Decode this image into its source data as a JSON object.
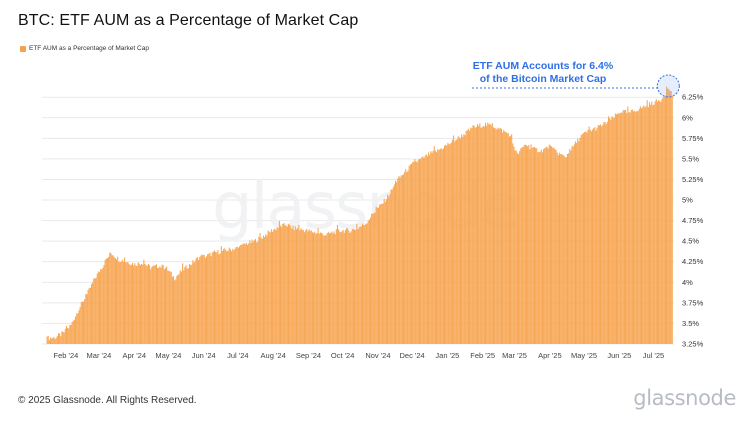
{
  "header": {
    "title": "BTC: ETF AUM as a Percentage of Market Cap"
  },
  "chart_data": {
    "type": "bar",
    "title": "BTC: ETF AUM as a Percentage of Market Cap",
    "xlabel": "",
    "ylabel": "",
    "ylim": [
      3.25,
      6.35
    ],
    "grid": true,
    "legend_position": "top-left",
    "legend": [
      "ETF AUM as a Percentage of Market Cap"
    ],
    "yticks": [
      "3.25%",
      "3.5%",
      "3.75%",
      "4%",
      "4.25%",
      "4.5%",
      "4.75%",
      "5%",
      "5.25%",
      "5.5%",
      "5.75%",
      "6%",
      "6.25%"
    ],
    "ytick_values": [
      3.25,
      3.5,
      3.75,
      4.0,
      4.25,
      4.5,
      4.75,
      5.0,
      5.25,
      5.5,
      5.75,
      6.0,
      6.25
    ],
    "xticks": [
      "Feb '24",
      "Mar '24",
      "Apr '24",
      "May '24",
      "Jun '24",
      "Jul '24",
      "Aug '24",
      "Sep '24",
      "Oct '24",
      "Nov '24",
      "Dec '24",
      "Jan '25",
      "Feb '25",
      "Mar '25",
      "Apr '25",
      "May '25",
      "Jun '25",
      "Jul '25"
    ],
    "series": [
      {
        "name": "ETF AUM as a Percentage of Market Cap",
        "color": "#f7a24a",
        "points": [
          [
            "2024-01-15",
            3.32
          ],
          [
            "2024-01-22",
            3.33
          ],
          [
            "2024-01-29",
            3.38
          ],
          [
            "2024-02-05",
            3.48
          ],
          [
            "2024-02-12",
            3.68
          ],
          [
            "2024-02-19",
            3.85
          ],
          [
            "2024-02-26",
            4.05
          ],
          [
            "2024-03-04",
            4.2
          ],
          [
            "2024-03-11",
            4.36
          ],
          [
            "2024-03-18",
            4.28
          ],
          [
            "2024-03-25",
            4.25
          ],
          [
            "2024-04-01",
            4.22
          ],
          [
            "2024-04-08",
            4.24
          ],
          [
            "2024-04-15",
            4.18
          ],
          [
            "2024-04-22",
            4.2
          ],
          [
            "2024-04-29",
            4.17
          ],
          [
            "2024-05-06",
            4.05
          ],
          [
            "2024-05-13",
            4.15
          ],
          [
            "2024-05-20",
            4.22
          ],
          [
            "2024-05-27",
            4.3
          ],
          [
            "2024-06-03",
            4.32
          ],
          [
            "2024-06-10",
            4.36
          ],
          [
            "2024-06-17",
            4.38
          ],
          [
            "2024-06-24",
            4.4
          ],
          [
            "2024-07-01",
            4.42
          ],
          [
            "2024-07-08",
            4.47
          ],
          [
            "2024-07-15",
            4.5
          ],
          [
            "2024-07-22",
            4.55
          ],
          [
            "2024-07-29",
            4.62
          ],
          [
            "2024-08-05",
            4.67
          ],
          [
            "2024-08-12",
            4.7
          ],
          [
            "2024-08-19",
            4.66
          ],
          [
            "2024-08-26",
            4.64
          ],
          [
            "2024-09-02",
            4.62
          ],
          [
            "2024-09-09",
            4.6
          ],
          [
            "2024-09-16",
            4.58
          ],
          [
            "2024-09-23",
            4.61
          ],
          [
            "2024-09-30",
            4.63
          ],
          [
            "2024-10-07",
            4.63
          ],
          [
            "2024-10-14",
            4.66
          ],
          [
            "2024-10-21",
            4.72
          ],
          [
            "2024-10-28",
            4.85
          ],
          [
            "2024-11-04",
            4.95
          ],
          [
            "2024-11-11",
            5.08
          ],
          [
            "2024-11-18",
            5.25
          ],
          [
            "2024-11-25",
            5.35
          ],
          [
            "2024-12-02",
            5.45
          ],
          [
            "2024-12-09",
            5.5
          ],
          [
            "2024-12-16",
            5.56
          ],
          [
            "2024-12-23",
            5.6
          ],
          [
            "2024-12-30",
            5.66
          ],
          [
            "2025-01-06",
            5.72
          ],
          [
            "2025-01-13",
            5.78
          ],
          [
            "2025-01-20",
            5.85
          ],
          [
            "2025-01-27",
            5.9
          ],
          [
            "2025-02-03",
            5.92
          ],
          [
            "2025-02-10",
            5.9
          ],
          [
            "2025-02-17",
            5.85
          ],
          [
            "2025-02-24",
            5.8
          ],
          [
            "2025-03-03",
            5.55
          ],
          [
            "2025-03-10",
            5.68
          ],
          [
            "2025-03-17",
            5.62
          ],
          [
            "2025-03-24",
            5.6
          ],
          [
            "2025-03-31",
            5.65
          ],
          [
            "2025-04-07",
            5.58
          ],
          [
            "2025-04-14",
            5.52
          ],
          [
            "2025-04-21",
            5.65
          ],
          [
            "2025-04-28",
            5.78
          ],
          [
            "2025-05-05",
            5.84
          ],
          [
            "2025-05-12",
            5.88
          ],
          [
            "2025-05-19",
            5.93
          ],
          [
            "2025-05-26",
            6.0
          ],
          [
            "2025-06-02",
            6.08
          ],
          [
            "2025-06-09",
            6.06
          ],
          [
            "2025-06-16",
            6.1
          ],
          [
            "2025-06-23",
            6.14
          ],
          [
            "2025-06-30",
            6.18
          ],
          [
            "2025-07-07",
            6.22
          ],
          [
            "2025-07-10",
            6.28
          ],
          [
            "2025-07-14",
            6.36
          ],
          [
            "2025-07-17",
            6.28
          ]
        ]
      }
    ],
    "annotation": {
      "line1": "ETF AUM Accounts for 6.4%",
      "line2": "of the Bitcoin Market Cap",
      "date": "2025-07-14",
      "value": 6.36,
      "color": "#2f6fe6"
    }
  },
  "footer": {
    "copyright": "© 2025 Glassnode. All Rights Reserved.",
    "brand": "glassnode",
    "watermark": "glassnode"
  }
}
